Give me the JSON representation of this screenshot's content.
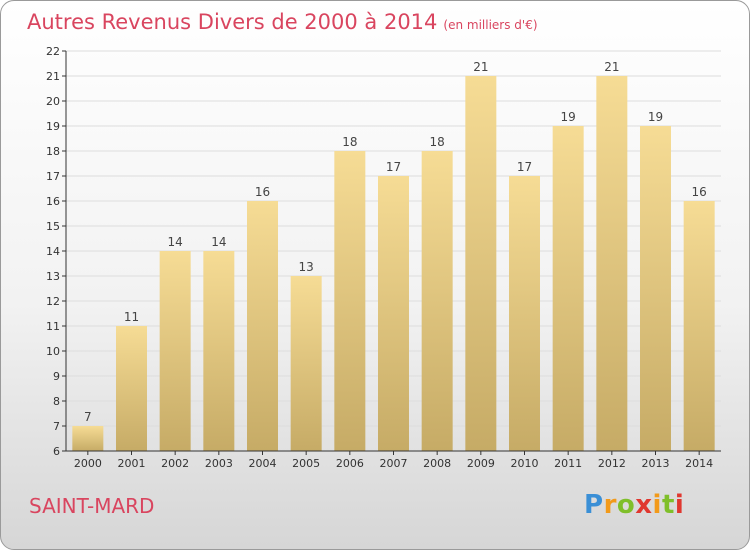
{
  "title": "Autres Revenus Divers de 2000 à 2014",
  "unit_note": "(en milliers d'€)",
  "city": "SAINT-MARD",
  "logo": "Proxiti",
  "colors": {
    "title": "#d9455f",
    "bar_top": "#f6dc95",
    "bar_bottom": "#c6ab66",
    "axis": "#333333",
    "grid": "#dddddd"
  },
  "chart_data": {
    "type": "bar",
    "categories": [
      "2000",
      "2001",
      "2002",
      "2003",
      "2004",
      "2005",
      "2006",
      "2007",
      "2008",
      "2009",
      "2010",
      "2011",
      "2012",
      "2013",
      "2014"
    ],
    "values": [
      7,
      11,
      14,
      14,
      16,
      13,
      18,
      17,
      18,
      21,
      17,
      19,
      21,
      19,
      16
    ],
    "ylim": [
      6,
      22
    ],
    "yticks": [
      6,
      7,
      8,
      9,
      10,
      11,
      12,
      13,
      14,
      15,
      16,
      17,
      18,
      19,
      20,
      21,
      22
    ],
    "title": "Autres Revenus Divers de 2000 à 2014",
    "xlabel": "",
    "ylabel": "",
    "data_labels": true
  }
}
